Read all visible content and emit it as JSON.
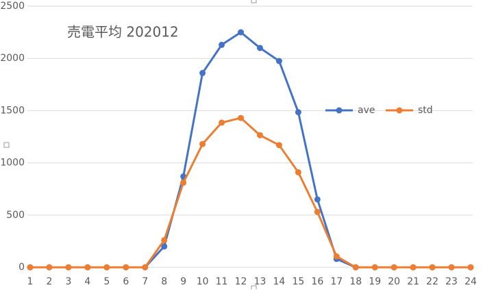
{
  "chart_data": {
    "type": "line",
    "title": "売電平均 202012",
    "categories": [
      "1",
      "2",
      "3",
      "4",
      "5",
      "6",
      "7",
      "8",
      "9",
      "10",
      "11",
      "12",
      "13",
      "14",
      "15",
      "16",
      "17",
      "18",
      "19",
      "20",
      "21",
      "22",
      "23",
      "24"
    ],
    "series": [
      {
        "name": "ave",
        "color": "#4472c4",
        "values": [
          0,
          0,
          0,
          0,
          0,
          0,
          0,
          200,
          870,
          1860,
          2130,
          2250,
          2100,
          1975,
          1485,
          650,
          80,
          0,
          0,
          0,
          0,
          0,
          0,
          0
        ]
      },
      {
        "name": "std",
        "color": "#ed7d31",
        "values": [
          0,
          0,
          0,
          0,
          0,
          0,
          0,
          260,
          810,
          1180,
          1385,
          1430,
          1265,
          1170,
          910,
          530,
          105,
          0,
          0,
          0,
          0,
          0,
          0,
          0
        ]
      }
    ],
    "ylim": [
      0,
      2500
    ],
    "yticks": [
      0,
      500,
      1000,
      1500,
      2000,
      2500
    ],
    "grid": true
  }
}
